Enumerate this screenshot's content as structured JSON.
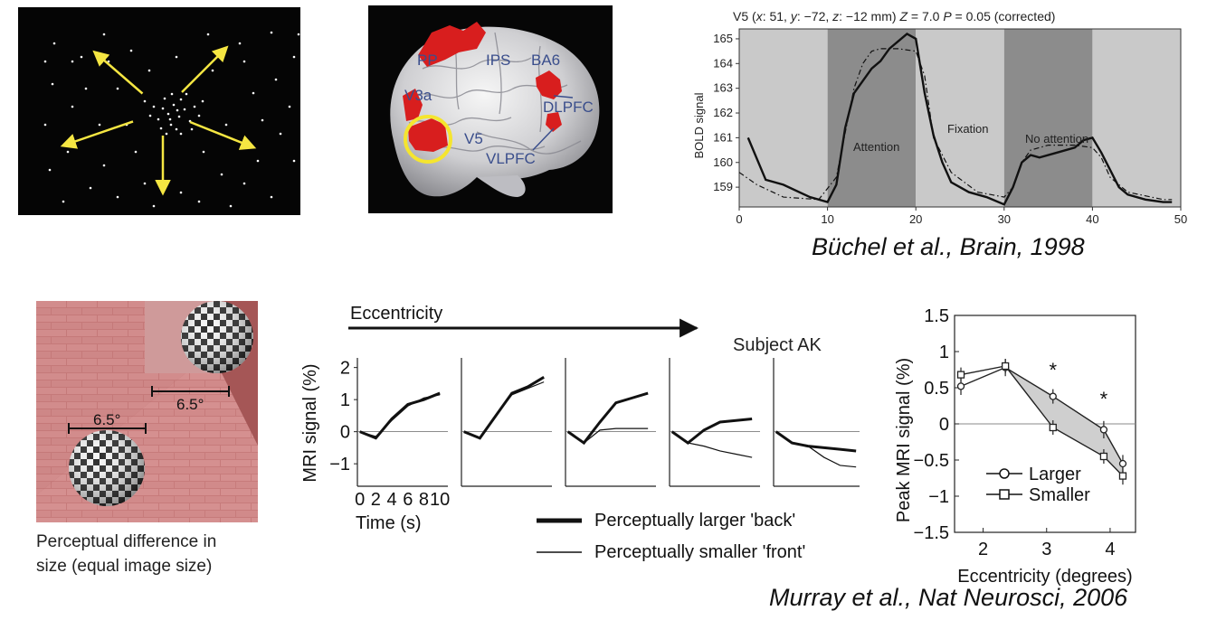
{
  "dots_panel": {
    "arrow_color": "#f5e642",
    "center_dots": [
      [
        160,
        112
      ],
      [
        166,
        118
      ],
      [
        172,
        108
      ],
      [
        178,
        121
      ],
      [
        184,
        113
      ],
      [
        155,
        124
      ],
      [
        190,
        126
      ],
      [
        169,
        130
      ],
      [
        180,
        102
      ],
      [
        162,
        101
      ],
      [
        195,
        110
      ],
      [
        150,
        110
      ],
      [
        175,
        135
      ],
      [
        186,
        96
      ],
      [
        158,
        134
      ],
      [
        200,
        120
      ],
      [
        170,
        96
      ],
      [
        146,
        120
      ],
      [
        192,
        135
      ],
      [
        164,
        140
      ],
      [
        180,
        140
      ],
      [
        204,
        104
      ],
      [
        140,
        104
      ],
      [
        176,
        114
      ],
      [
        168,
        124
      ]
    ],
    "field_dots": [
      [
        40,
        40
      ],
      [
        70,
        55
      ],
      [
        95,
        30
      ],
      [
        125,
        48
      ],
      [
        210,
        30
      ],
      [
        245,
        40
      ],
      [
        280,
        28
      ],
      [
        305,
        55
      ],
      [
        320,
        90
      ],
      [
        300,
        110
      ],
      [
        290,
        140
      ],
      [
        305,
        170
      ],
      [
        318,
        200
      ],
      [
        280,
        210
      ],
      [
        250,
        195
      ],
      [
        235,
        220
      ],
      [
        200,
        215
      ],
      [
        180,
        205
      ],
      [
        150,
        220
      ],
      [
        110,
        210
      ],
      [
        80,
        200
      ],
      [
        50,
        215
      ],
      [
        35,
        180
      ],
      [
        55,
        160
      ],
      [
        30,
        130
      ],
      [
        60,
        110
      ],
      [
        38,
        85
      ],
      [
        75,
        90
      ],
      [
        90,
        130
      ],
      [
        110,
        90
      ],
      [
        130,
        160
      ],
      [
        215,
        70
      ],
      [
        260,
        95
      ],
      [
        230,
        130
      ],
      [
        265,
        170
      ],
      [
        120,
        130
      ],
      [
        95,
        175
      ],
      [
        145,
        70
      ],
      [
        205,
        160
      ],
      [
        250,
        60
      ],
      [
        60,
        60
      ],
      [
        285,
        80
      ],
      [
        315,
        135
      ],
      [
        140,
        195
      ],
      [
        225,
        185
      ],
      [
        100,
        60
      ],
      [
        175,
        55
      ],
      [
        30,
        60
      ],
      [
        310,
        30
      ],
      [
        270,
        125
      ]
    ]
  },
  "brain_panel": {
    "labels": [
      "PP",
      "IPS",
      "BA6",
      "V3a",
      "DLPFC",
      "V5",
      "VLPFC"
    ],
    "label_color": "#3a4e8c",
    "activation_color": "#d81e1e",
    "circle_color": "#f5e52e"
  },
  "top_chart": {
    "title": "V5  (x: 51, y: −72, z: −12 mm) Z = 7.0 P = 0.05 (corrected)",
    "title_parts": {
      "prefix": "V5  (",
      "x_label": "x",
      "x_val": ": 51, ",
      "y_label": "y",
      "y_val": ": −72, ",
      "z_label": "z",
      "z_val": ": −12 mm) ",
      "Z_label": "Z",
      "Z_val": " = 7.0 ",
      "P_label": "P",
      "P_val": " = 0.05 (corrected)"
    },
    "annotations": {
      "attention": "Attention",
      "fixation": "Fixation",
      "no_attention": "No attention"
    }
  },
  "top_citation": "Büchel et al., Brain, 1998",
  "illusion_panel": {
    "label_back": "6.5°",
    "label_front": "6.5°",
    "caption_line1": "Perceptual difference in",
    "caption_line2": "size (equal image size)"
  },
  "eccentricity_header": "Eccentricity",
  "subject_label": "Subject AK",
  "legend": {
    "larger": "Perceptually larger 'back'",
    "smaller": "Perceptually smaller 'front'"
  },
  "right_chart_legend": {
    "larger": "Larger",
    "smaller": "Smaller"
  },
  "bottom_citation": "Murray et al., Nat Neurosci, 2006",
  "chart_data": [
    {
      "type": "line",
      "title": "V5  (x: 51, y: −72, z: −12 mm) Z = 7.0 P = 0.05 (corrected)",
      "xlabel": "",
      "ylabel": "BOLD signal",
      "xlim": [
        0,
        50
      ],
      "ylim": [
        158.2,
        165.4
      ],
      "xticks": [
        0,
        10,
        20,
        30,
        40,
        50
      ],
      "yticks": [
        159,
        160,
        161,
        162,
        163,
        164,
        165
      ],
      "shaded_blocks": [
        {
          "from": 10,
          "to": 20,
          "label": "Attention",
          "shade": "dark"
        },
        {
          "from": 20,
          "to": 30,
          "label": "Fixation",
          "shade": "light"
        },
        {
          "from": 30,
          "to": 40,
          "label": "No attention",
          "shade": "dark"
        },
        {
          "from": 0,
          "to": 10,
          "label": "",
          "shade": "light"
        },
        {
          "from": 40,
          "to": 50,
          "label": "",
          "shade": "light"
        }
      ],
      "series": [
        {
          "name": "",
          "style": "solid",
          "x": [
            1,
            3,
            5,
            8,
            10,
            11,
            12,
            13,
            14,
            15,
            16,
            17,
            18,
            19,
            20,
            21,
            22,
            23,
            24,
            26,
            28,
            30,
            31,
            32,
            33,
            34,
            36,
            38,
            39,
            40,
            41,
            42,
            43,
            44,
            46,
            48,
            49
          ],
          "y": [
            161,
            159.3,
            159.1,
            158.6,
            158.4,
            159.1,
            161.4,
            162.8,
            163.3,
            163.8,
            164.1,
            164.6,
            164.9,
            165.2,
            165,
            162.8,
            161.1,
            160,
            159.2,
            158.8,
            158.6,
            158.3,
            159,
            160,
            160.3,
            160.2,
            160.4,
            160.6,
            160.9,
            161,
            160.4,
            159.7,
            159,
            158.7,
            158.5,
            158.4,
            158.4
          ]
        },
        {
          "name": "",
          "style": "dashed",
          "x": [
            0,
            2,
            5,
            9,
            11,
            12,
            13,
            14,
            15,
            16,
            18,
            20,
            21,
            22,
            24,
            27,
            30,
            31,
            32,
            33,
            35,
            38,
            40,
            41,
            42,
            44,
            48,
            49
          ],
          "y": [
            159.6,
            159.1,
            158.6,
            158.5,
            159.4,
            161.2,
            163,
            164,
            164.5,
            164.6,
            164.6,
            164.5,
            163.5,
            161,
            159.6,
            158.8,
            158.6,
            159,
            160,
            160.5,
            160.7,
            160.7,
            160.6,
            160.2,
            159.4,
            158.8,
            158.5,
            158.5
          ]
        }
      ]
    },
    {
      "type": "line",
      "title": "",
      "xlabel": "Time (s)",
      "ylabel": "MRI signal (%)",
      "xticks": [
        0,
        2,
        4,
        6,
        8,
        10
      ],
      "xtick_labels": [
        "0",
        "2",
        "4",
        "6",
        "8",
        "10"
      ],
      "yticks": [
        -1,
        0,
        1,
        2
      ],
      "ylim": [
        -1.7,
        2.3
      ],
      "xlim": [
        -0.3,
        11
      ],
      "panels": [
        {
          "x": [
            0,
            2,
            4,
            6,
            8,
            10
          ],
          "larger": [
            0,
            -0.2,
            0.4,
            0.85,
            1,
            1.2
          ],
          "smaller": [
            0,
            -0.15,
            0.35,
            0.8,
            1.05,
            1.15
          ]
        },
        {
          "x": [
            0,
            2,
            4,
            6,
            8,
            10
          ],
          "larger": [
            0,
            -0.2,
            0.5,
            1.2,
            1.4,
            1.7
          ],
          "smaller": [
            0,
            -0.2,
            0.5,
            1.15,
            1.35,
            1.55
          ]
        },
        {
          "x": [
            0,
            2,
            4,
            6,
            8,
            10
          ],
          "larger": [
            0,
            -0.35,
            0.3,
            0.9,
            1.05,
            1.2
          ],
          "smaller": [
            0,
            -0.35,
            0.05,
            0.1,
            0.1,
            0.1
          ]
        },
        {
          "x": [
            0,
            2,
            4,
            6,
            8,
            10
          ],
          "larger": [
            0,
            -0.35,
            0.05,
            0.3,
            0.35,
            0.4
          ],
          "smaller": [
            0,
            -0.35,
            -0.45,
            -0.6,
            -0.7,
            -0.8
          ]
        },
        {
          "x": [
            0,
            2,
            4,
            6,
            8,
            10
          ],
          "larger": [
            0,
            -0.35,
            -0.45,
            -0.5,
            -0.55,
            -0.6
          ],
          "smaller": [
            0,
            -0.35,
            -0.45,
            -0.8,
            -1.05,
            -1.1
          ]
        }
      ],
      "series_names": [
        "Perceptually larger 'back'",
        "Perceptually smaller 'front'"
      ]
    },
    {
      "type": "line",
      "title": "",
      "xlabel": "Eccentricity (degrees)",
      "ylabel": "Peak MRI signal (%)",
      "xlim": [
        1.55,
        4.4
      ],
      "ylim": [
        -1.5,
        1.5
      ],
      "xticks": [
        2,
        3,
        4
      ],
      "yticks": [
        -1.5,
        -1,
        -0.5,
        0,
        0.5,
        1,
        1.5
      ],
      "ytick_labels": [
        "−1.5",
        "−1",
        "−0.5",
        "0",
        "0.5",
        "1",
        "1.5"
      ],
      "significance": [
        {
          "x": 3.1,
          "y": 0.75,
          "label": "*"
        },
        {
          "x": 3.9,
          "y": 0.35,
          "label": "*"
        }
      ],
      "series": [
        {
          "name": "Larger",
          "marker": "circle",
          "x": [
            1.65,
            2.35,
            3.1,
            3.9,
            4.2
          ],
          "y": [
            0.52,
            0.78,
            0.38,
            -0.08,
            -0.55
          ],
          "err": [
            0.12,
            0.12,
            0.1,
            0.12,
            0.12
          ]
        },
        {
          "name": "Smaller",
          "marker": "square",
          "x": [
            1.65,
            2.35,
            3.1,
            3.9,
            4.2
          ],
          "y": [
            0.68,
            0.8,
            -0.05,
            -0.45,
            -0.72
          ],
          "err": [
            0.1,
            0.1,
            0.1,
            0.1,
            0.12
          ]
        }
      ]
    }
  ]
}
